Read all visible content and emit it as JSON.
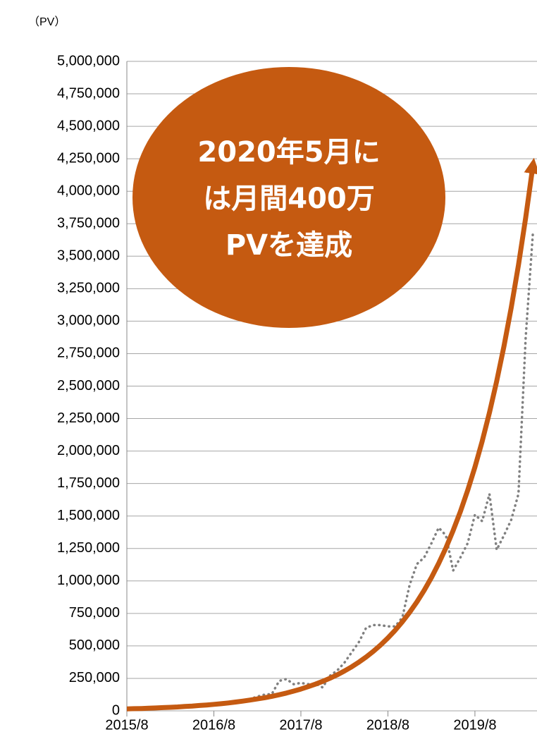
{
  "chart_data": {
    "type": "line",
    "unit_label": "（PV）",
    "annotation": [
      "2020年5月に",
      "は月間400万",
      "PVを達成"
    ],
    "annotation_color": "#c55a11",
    "categories": [
      "2015/8",
      null,
      null,
      null,
      null,
      null,
      null,
      null,
      null,
      null,
      null,
      null,
      "2016/8",
      null,
      null,
      null,
      null,
      null,
      null,
      null,
      null,
      null,
      null,
      null,
      "2017/8",
      null,
      null,
      null,
      null,
      null,
      null,
      null,
      null,
      null,
      null,
      null,
      "2018/8",
      null,
      null,
      null,
      null,
      null,
      null,
      null,
      null,
      null,
      null,
      null,
      "2019/8",
      null,
      null,
      null,
      null,
      null,
      null,
      null,
      null
    ],
    "series": [
      {
        "color": "#808080",
        "style": "dotted",
        "values": [
          10000,
          12000,
          15000,
          18000,
          20000,
          22000,
          25000,
          28000,
          30000,
          33000,
          36000,
          40000,
          50000,
          55000,
          60000,
          65000,
          75000,
          90000,
          110000,
          125000,
          130000,
          230000,
          245000,
          205000,
          215000,
          205000,
          210000,
          180000,
          270000,
          310000,
          370000,
          450000,
          530000,
          640000,
          660000,
          660000,
          650000,
          650000,
          720000,
          970000,
          1130000,
          1180000,
          1290000,
          1410000,
          1350000,
          1080000,
          1180000,
          1290000,
          1510000,
          1460000,
          1670000,
          1240000,
          1350000,
          1470000,
          1670000,
          2870000,
          3680000
        ]
      },
      {
        "color": "#c55a11",
        "style": "arrow",
        "values": [
          15000,
          17000,
          18000,
          20000,
          22000,
          25000,
          27000,
          30000,
          34000,
          37000,
          41000,
          45000,
          50000,
          55000,
          61000,
          68000,
          75000,
          83000,
          92000,
          101000,
          112000,
          124000,
          137000,
          152000,
          168000,
          186000,
          205000,
          227000,
          251000,
          277000,
          307000,
          339000,
          375000,
          415000,
          459000,
          507000,
          561000,
          620000,
          686000,
          759000,
          839000,
          928000,
          1026000,
          1135000,
          1255000,
          1388000,
          1534000,
          1697000,
          1876000,
          2075000,
          2295000,
          2538000,
          2806000,
          3103000,
          3432000,
          3795000,
          4197000
        ]
      }
    ],
    "ylim": [
      0,
      5000000
    ],
    "yticks": [
      0,
      {
        "value": 250000,
        "label": "250,000"
      },
      {
        "value": 500000,
        "label": "500,000"
      },
      {
        "value": 750000,
        "label": "750,000"
      },
      {
        "value": 1000000,
        "label": "1,000,000"
      },
      {
        "value": 1250000,
        "label": "1,250,000"
      },
      {
        "value": 1500000,
        "label": "1,500,000"
      },
      {
        "value": 1750000,
        "label": "1,750,000"
      },
      {
        "value": 2000000,
        "label": "2,000,000"
      },
      {
        "value": 2250000,
        "label": "2,250,000"
      },
      {
        "value": 2500000,
        "label": "2,500,000"
      },
      {
        "value": 2750000,
        "label": "2,750,000"
      },
      {
        "value": 3000000,
        "label": "3,000,000"
      },
      {
        "value": 3250000,
        "label": "3,250,000"
      },
      {
        "value": 3500000,
        "label": "3,500,000"
      },
      {
        "value": 3750000,
        "label": "3,750,000"
      },
      {
        "value": 4000000,
        "label": "4,000,000"
      },
      {
        "value": 4250000,
        "label": "4,250,000"
      },
      {
        "value": 4500000,
        "label": "4,500,000"
      },
      {
        "value": 4750000,
        "label": "4,750,000"
      },
      {
        "value": 5000000,
        "label": "5,000,000"
      }
    ],
    "grid": true
  }
}
